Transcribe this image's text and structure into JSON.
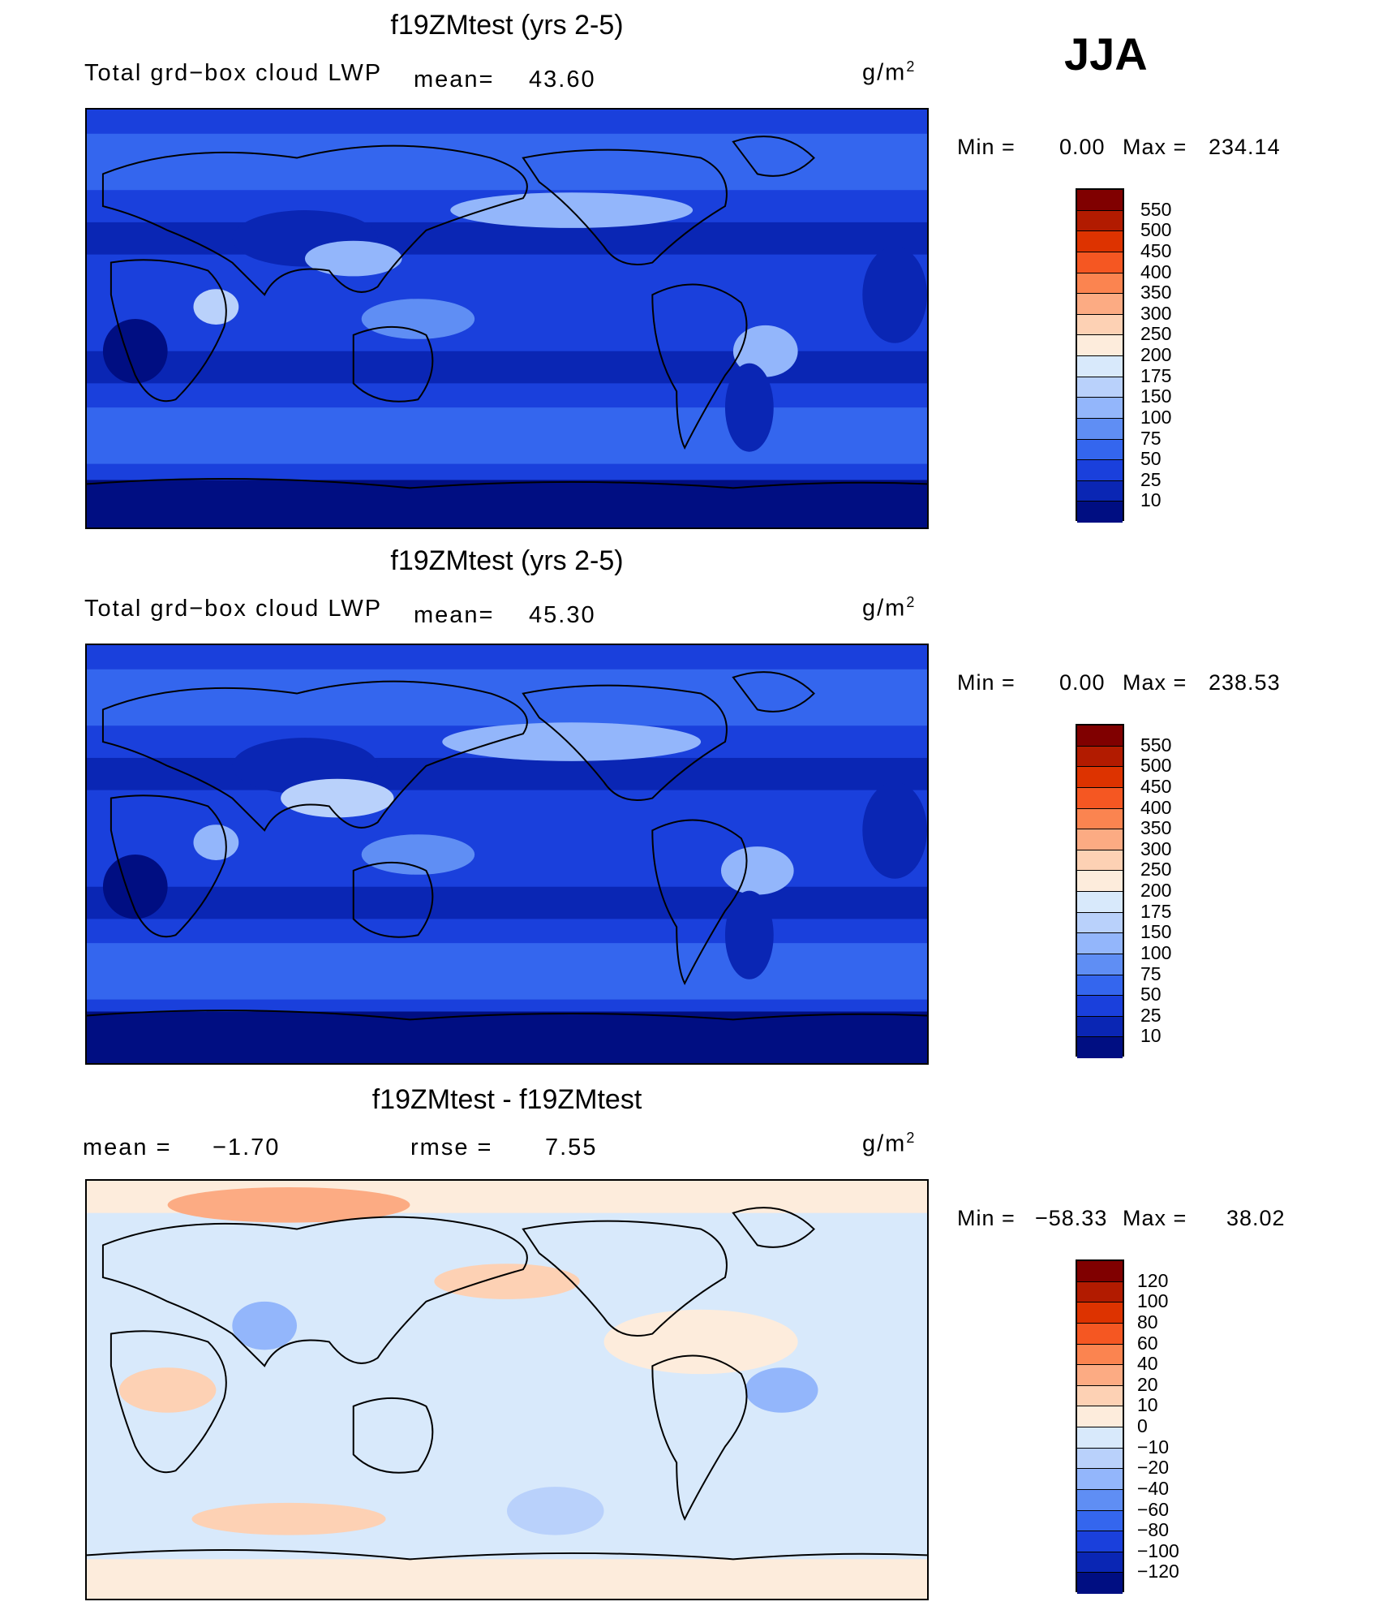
{
  "season": "JJA",
  "chart_data": [
    {
      "type": "heatmap",
      "title": "f19ZMtest (yrs 2-5)",
      "variable": "Total grd−box cloud LWP",
      "mean_label": "mean=",
      "mean_value": "43.60",
      "units_base": "g/m",
      "units_exp": "2",
      "min_label": "Min  =",
      "min_value": "0.00",
      "max_label": "Max  =",
      "max_value": "234.14",
      "levels": [
        "550",
        "500",
        "450",
        "400",
        "350",
        "300",
        "250",
        "200",
        "175",
        "150",
        "100",
        "75",
        "50",
        "25",
        "10"
      ],
      "colors": [
        "#800000",
        "#b21b00",
        "#dd3300",
        "#f55722",
        "#fb8450",
        "#fcab83",
        "#fdd1b4",
        "#fdecdc",
        "#d8e9fb",
        "#b9d1fb",
        "#93b6fb",
        "#5f8ef4",
        "#3466ee",
        "#1a40dc",
        "#0a26b4",
        "#000e82"
      ]
    },
    {
      "type": "heatmap",
      "title": "f19ZMtest (yrs 2-5)",
      "variable": "Total grd−box cloud LWP",
      "mean_label": "mean=",
      "mean_value": "45.30",
      "units_base": "g/m",
      "units_exp": "2",
      "min_label": "Min  =",
      "min_value": "0.00",
      "max_label": "Max  =",
      "max_value": "238.53",
      "levels": [
        "550",
        "500",
        "450",
        "400",
        "350",
        "300",
        "250",
        "200",
        "175",
        "150",
        "100",
        "75",
        "50",
        "25",
        "10"
      ],
      "colors": [
        "#800000",
        "#b21b00",
        "#dd3300",
        "#f55722",
        "#fb8450",
        "#fcab83",
        "#fdd1b4",
        "#fdecdc",
        "#d8e9fb",
        "#b9d1fb",
        "#93b6fb",
        "#5f8ef4",
        "#3466ee",
        "#1a40dc",
        "#0a26b4",
        "#000e82"
      ]
    },
    {
      "type": "heatmap",
      "title": "f19ZMtest - f19ZMtest",
      "mean_label": "mean  =",
      "mean_value": "−1.70",
      "rmse_label": "rmse  =",
      "rmse_value": "7.55",
      "units_base": "g/m",
      "units_exp": "2",
      "min_label": "Min  =",
      "min_value": "−58.33",
      "max_label": "Max  =",
      "max_value": "38.02",
      "levels": [
        "120",
        "100",
        "80",
        "60",
        "40",
        "20",
        "10",
        "0",
        "−10",
        "−20",
        "−40",
        "−60",
        "−80",
        "−100",
        "−120"
      ],
      "colors": [
        "#800000",
        "#b21b00",
        "#dd3300",
        "#f55722",
        "#fb8450",
        "#fcab83",
        "#fdd1b4",
        "#fdecdc",
        "#d8e9fb",
        "#b9d1fb",
        "#93b6fb",
        "#5f8ef4",
        "#3466ee",
        "#1a40dc",
        "#0a26b4",
        "#000e82"
      ]
    }
  ]
}
